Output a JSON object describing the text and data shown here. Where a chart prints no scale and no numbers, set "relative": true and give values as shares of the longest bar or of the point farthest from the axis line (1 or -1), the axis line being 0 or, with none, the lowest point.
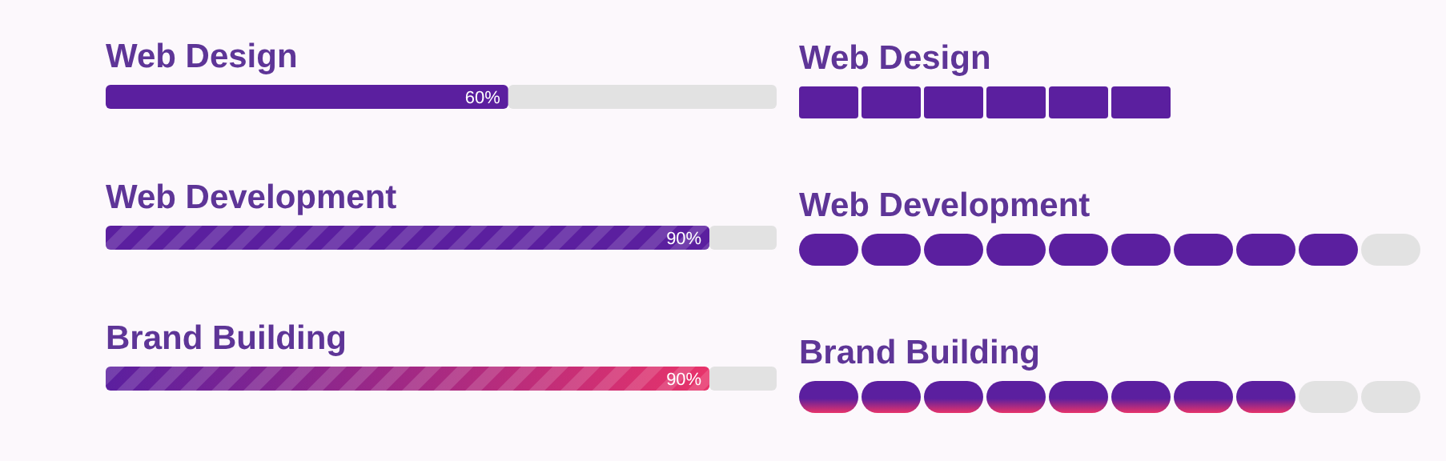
{
  "chart_data": [
    {
      "type": "bar",
      "orientation": "horizontal",
      "stacked": true,
      "tick_labels": false,
      "categories": [
        "Web Design",
        "Web Development",
        "Brand Building"
      ],
      "xlim": [
        0,
        100
      ],
      "series": [
        {
          "colors": [
            "#5b1f9f",
            "#5b1f9f",
            "#e8336a"
          ],
          "values": [
            60,
            90,
            90
          ],
          "value_labels": [
            "60%",
            "90%",
            "90%"
          ]
        },
        {
          "color": "#e2e2e2",
          "values": [
            40,
            10,
            10
          ]
        }
      ]
    },
    {
      "type": "bar",
      "orientation": "horizontal",
      "stacked": true,
      "relative": true,
      "categories": [
        "Web Design",
        "Web Development",
        "Brand Building"
      ],
      "series": [
        {
          "colors": [
            "#5b1f9f",
            "#5b1f9f",
            "#e8336a"
          ],
          "values": [
            0.6,
            0.9,
            0.8
          ]
        },
        {
          "color": "#e2e2e2",
          "values": [
            null,
            0.1,
            0.2
          ]
        }
      ]
    }
  ]
}
